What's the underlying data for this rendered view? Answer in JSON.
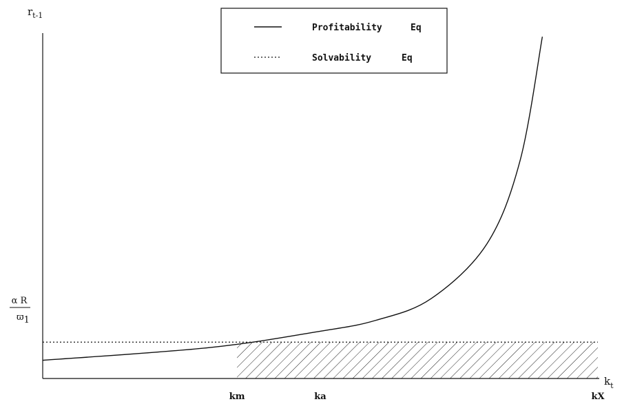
{
  "chart_data": {
    "type": "line",
    "title": "",
    "xlabel": "k_t",
    "ylabel": "r_{t-1}",
    "x_ticks": [
      "km",
      "ka",
      "kX"
    ],
    "y_tick": {
      "numerator": "α R",
      "denominator": "ϖ",
      "subscript": "1"
    },
    "legend": {
      "placement": "top-center",
      "entries": [
        {
          "name": "Profitability",
          "suffix": "Eq",
          "style": "solid"
        },
        {
          "name": "Solvability",
          "suffix": "Eq",
          "style": "dotted"
        }
      ]
    },
    "x_axis_label": {
      "main": "k",
      "sub": "t"
    },
    "y_axis_label": {
      "main": "r",
      "sub": "t-1"
    },
    "series": [
      {
        "name": "Profitability",
        "style": "solid",
        "x": [
          0.0,
          0.3,
          0.5,
          0.6,
          0.7,
          0.8,
          0.86,
          0.9
        ],
        "y": [
          0.1,
          0.17,
          0.26,
          0.32,
          0.44,
          0.74,
          1.2,
          1.88
        ]
      },
      {
        "name": "Solvability",
        "style": "dotted",
        "x": [
          0.0,
          1.0
        ],
        "y": [
          0.2,
          0.2
        ]
      }
    ],
    "shaded_region": {
      "x_from": 0.35,
      "x_to": 1.0,
      "y_from": 0.0,
      "y_to": 0.2,
      "pattern": "hatched"
    },
    "xlim": [
      0,
      1
    ],
    "ylim": [
      0,
      1.9
    ],
    "grid": false
  }
}
